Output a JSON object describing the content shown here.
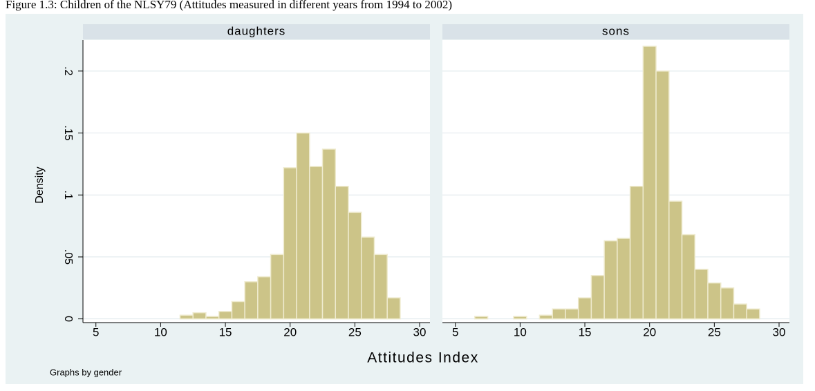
{
  "figure_caption": "Figure 1.3: Children of the NLSY79 (Attitudes measured in different years from 1994 to 2002)",
  "chart_data": {
    "type": "histogram",
    "xlabel": "Attitudes Index",
    "ylabel": "Density",
    "note": "Graphs by gender",
    "bins": [
      6.5,
      7.5,
      8.5,
      9.5,
      10.5,
      11.5,
      12.5,
      13.5,
      14.5,
      15.5,
      16.5,
      17.5,
      18.5,
      19.5,
      20.5,
      21.5,
      22.5,
      23.5,
      24.5,
      25.5,
      26.5,
      27.5,
      28.5
    ],
    "series": [
      {
        "name": "daughters",
        "color": "#ccc488",
        "values": [
          0,
          0,
          0,
          0,
          0,
          0.003,
          0.005,
          0.002,
          0.006,
          0.014,
          0.03,
          0.034,
          0.052,
          0.122,
          0.15,
          0.123,
          0.137,
          0.107,
          0.086,
          0.066,
          0.052,
          0.017
        ]
      },
      {
        "name": "sons",
        "color": "#ccc488",
        "values": [
          0.002,
          0,
          0,
          0.002,
          0,
          0.003,
          0.008,
          0.008,
          0.017,
          0.035,
          0.063,
          0.065,
          0.107,
          0.22,
          0.2,
          0.095,
          0.068,
          0.04,
          0.029,
          0.025,
          0.012,
          0.008
        ]
      }
    ],
    "xlim": [
      4,
      30.8
    ],
    "xticks": [
      5,
      10,
      15,
      20,
      25,
      30
    ],
    "ylim": [
      -0.003,
      0.225
    ],
    "yticks": [
      0,
      {
        "value": 0.05,
        "label": ".05"
      },
      {
        "value": 0.1,
        "label": ".1"
      },
      {
        "value": 0.15,
        "label": ".15"
      },
      {
        "value": 0.2,
        "label": ".2"
      }
    ],
    "grid": true
  }
}
